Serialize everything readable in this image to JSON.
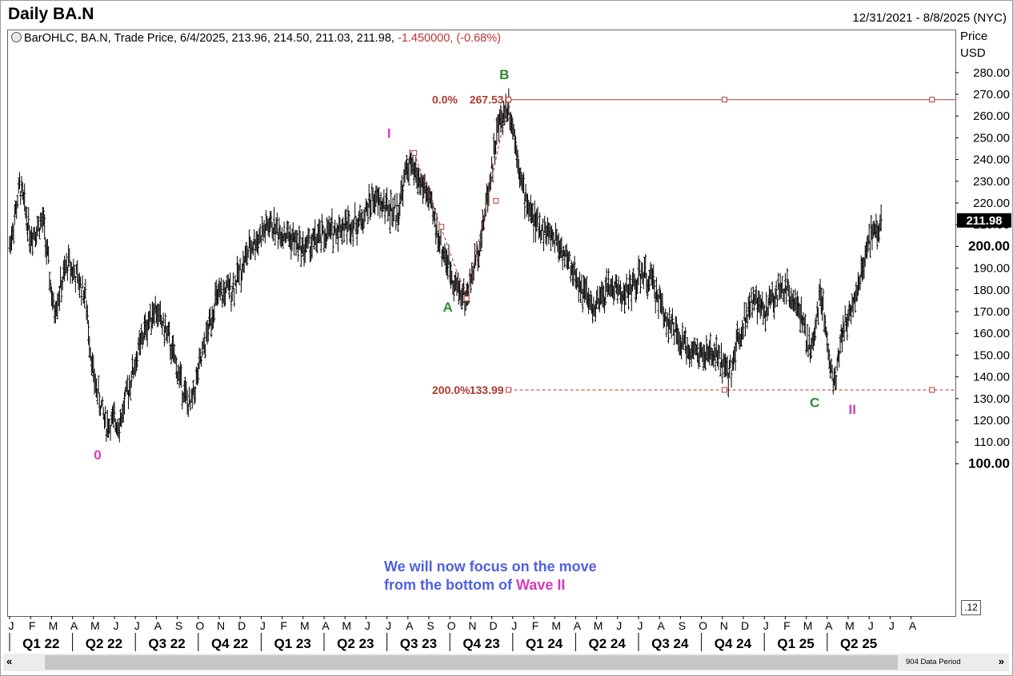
{
  "header": {
    "title": "Daily BA.N",
    "date_range": "12/31/2021 - 8/8/2025 (NYC)"
  },
  "info": {
    "text": "BarOHLC, BA.N, Trade Price, 6/4/2025, 213.96, 214.50, 211.03, 211.98, ",
    "change": "-1.450000, (-0.68%)"
  },
  "axis": {
    "unit_line1": "Price",
    "unit_line2": "USD",
    "zoom_value": ".12"
  },
  "annotation": {
    "line1": "We will now focus on the move",
    "line2_prefix": "from the bottom of ",
    "line2_highlight": "Wave II"
  },
  "scrollbar": {
    "left_arrow": "«",
    "right_arrow": "»",
    "data_period": "904 Data Period"
  },
  "colors": {
    "bars": "#000000",
    "fib": "#b03a2e",
    "wave_green": "#2e8b2e",
    "wave_pink": "#d43ac2",
    "note_blue": "#4f5fe0"
  },
  "chart_data": {
    "type": "ohlc",
    "ylim": [
      95,
      290
    ],
    "y_ticks": [
      "280.00",
      "270.00",
      "260.00",
      "250.00",
      "240.00",
      "230.00",
      "220.00",
      "210.00",
      "200.00",
      "190.00",
      "180.00",
      "170.00",
      "160.00",
      "150.00",
      "140.00",
      "130.00",
      "120.00",
      "110.00",
      "100.00"
    ],
    "y_tick_values": [
      280,
      270,
      260,
      250,
      240,
      230,
      220,
      210,
      200,
      190,
      180,
      170,
      160,
      150,
      140,
      130,
      120,
      110,
      100
    ],
    "y_tick_bold": [
      "200.00",
      "100.00"
    ],
    "last_price": "211.98",
    "last_price_value": 211.98,
    "month_labels": [
      "J",
      "F",
      "M",
      "A",
      "M",
      "J",
      "J",
      "A",
      "S",
      "O",
      "N",
      "D",
      "J",
      "F",
      "M",
      "A",
      "M",
      "J",
      "J",
      "A",
      "S",
      "O",
      "N",
      "D",
      "J",
      "F",
      "M",
      "A",
      "M",
      "J",
      "J",
      "A",
      "S",
      "O",
      "N",
      "D",
      "J",
      "F",
      "M",
      "A",
      "M",
      "J",
      "J",
      "A"
    ],
    "quarter_labels": [
      "Q1 22",
      "Q2 22",
      "Q3 22",
      "Q4 22",
      "Q1 23",
      "Q2 23",
      "Q3 23",
      "Q4 23",
      "Q1 24",
      "Q2 24",
      "Q3 24",
      "Q4 24",
      "Q1 25",
      "Q2 25"
    ],
    "price_path": [
      {
        "month": 0,
        "price": 200
      },
      {
        "month": 0.5,
        "price": 228
      },
      {
        "month": 1,
        "price": 205
      },
      {
        "month": 1.6,
        "price": 212
      },
      {
        "month": 2.1,
        "price": 170
      },
      {
        "month": 2.8,
        "price": 193
      },
      {
        "month": 3.6,
        "price": 178
      },
      {
        "month": 4.0,
        "price": 140
      },
      {
        "month": 4.6,
        "price": 118
      },
      {
        "month": 5.3,
        "price": 120
      },
      {
        "month": 5.8,
        "price": 140
      },
      {
        "month": 6.4,
        "price": 160
      },
      {
        "month": 6.9,
        "price": 172
      },
      {
        "month": 7.5,
        "price": 160
      },
      {
        "month": 8.1,
        "price": 140
      },
      {
        "month": 8.6,
        "price": 125
      },
      {
        "month": 9.2,
        "price": 150
      },
      {
        "month": 9.8,
        "price": 175
      },
      {
        "month": 10.7,
        "price": 182
      },
      {
        "month": 11.5,
        "price": 200
      },
      {
        "month": 12.4,
        "price": 210
      },
      {
        "month": 13.3,
        "price": 205
      },
      {
        "month": 14.0,
        "price": 199
      },
      {
        "month": 15.0,
        "price": 205
      },
      {
        "month": 16.0,
        "price": 210
      },
      {
        "month": 16.8,
        "price": 212
      },
      {
        "month": 17.3,
        "price": 222
      },
      {
        "month": 18.5,
        "price": 215
      },
      {
        "month": 19.0,
        "price": 238
      },
      {
        "month": 19.9,
        "price": 225
      },
      {
        "month": 20.6,
        "price": 200
      },
      {
        "month": 21.3,
        "price": 182
      },
      {
        "month": 21.8,
        "price": 176
      },
      {
        "month": 22.5,
        "price": 205
      },
      {
        "month": 23.3,
        "price": 255
      },
      {
        "month": 23.8,
        "price": 266
      },
      {
        "month": 24.2,
        "price": 245
      },
      {
        "month": 24.5,
        "price": 225
      },
      {
        "month": 25.1,
        "price": 210
      },
      {
        "month": 26.1,
        "price": 203
      },
      {
        "month": 26.9,
        "price": 188
      },
      {
        "month": 27.9,
        "price": 170
      },
      {
        "month": 28.6,
        "price": 182
      },
      {
        "month": 29.4,
        "price": 178
      },
      {
        "month": 30.2,
        "price": 187
      },
      {
        "month": 30.7,
        "price": 183
      },
      {
        "month": 31.2,
        "price": 170
      },
      {
        "month": 32.0,
        "price": 155
      },
      {
        "month": 33.0,
        "price": 150
      },
      {
        "month": 33.8,
        "price": 150
      },
      {
        "month": 34.3,
        "price": 140
      },
      {
        "month": 34.8,
        "price": 160
      },
      {
        "month": 35.4,
        "price": 175
      },
      {
        "month": 36.0,
        "price": 170
      },
      {
        "month": 36.9,
        "price": 182
      },
      {
        "month": 37.5,
        "price": 176
      },
      {
        "month": 38.2,
        "price": 150
      },
      {
        "month": 38.7,
        "price": 180
      },
      {
        "month": 39.3,
        "price": 135
      },
      {
        "month": 39.7,
        "price": 160
      },
      {
        "month": 40.2,
        "price": 172
      },
      {
        "month": 40.7,
        "price": 190
      },
      {
        "month": 41.1,
        "price": 205
      },
      {
        "month": 41.6,
        "price": 212
      }
    ],
    "fib_levels": [
      {
        "label": "0.0%",
        "price_label": "267.53",
        "value": 267.53
      },
      {
        "label": "200.0%",
        "price_label": "133.99",
        "value": 133.99
      }
    ],
    "fib_projection": [
      {
        "month": 19.3,
        "price": 243
      },
      {
        "month": 21.8,
        "price": 176
      },
      {
        "month": 23.8,
        "price": 267.53
      }
    ],
    "fib_mid_markers": [
      {
        "month": 20.6,
        "price": 209
      },
      {
        "month": 23.2,
        "price": 221
      }
    ],
    "fib_line_markers_month": [
      23.8,
      34.1,
      44.0
    ],
    "wave_labels": [
      {
        "text": "B",
        "month": 23.6,
        "price": 277,
        "color": "green"
      },
      {
        "text": "A",
        "month": 20.9,
        "price": 170,
        "color": "green"
      },
      {
        "text": "C",
        "month": 38.4,
        "price": 126,
        "color": "green"
      },
      {
        "text": "I",
        "month": 18.1,
        "price": 250,
        "color": "pink"
      },
      {
        "text": "0",
        "month": 4.2,
        "price": 102,
        "color": "pink"
      },
      {
        "text": "II",
        "month": 40.2,
        "price": 123,
        "color": "pink"
      }
    ]
  }
}
